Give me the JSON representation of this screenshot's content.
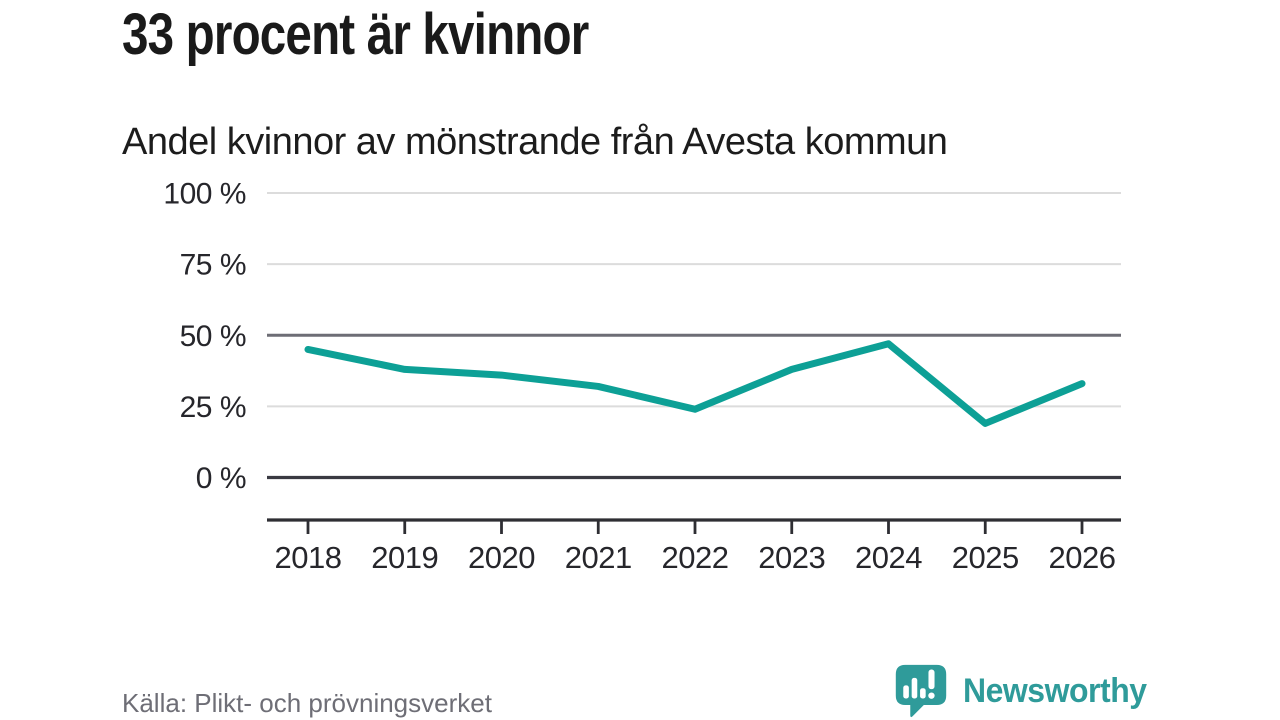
{
  "header": {
    "title": "33 procent är kvinnor",
    "subtitle": "Andel kvinnor av mönstrande från Avesta kommun"
  },
  "chart_data": {
    "type": "line",
    "title": "33 procent är kvinnor",
    "subtitle": "Andel kvinnor av mönstrande från Avesta kommun",
    "categories": [
      "2018",
      "2019",
      "2020",
      "2021",
      "2022",
      "2023",
      "2024",
      "2025",
      "2026"
    ],
    "series": [
      {
        "name": "Andel kvinnor av mönstrande (%)",
        "values": [
          45,
          38,
          36,
          32,
          24,
          38,
          47,
          19,
          33
        ]
      }
    ],
    "unit": "%",
    "ylim": [
      0,
      100
    ],
    "yticks": [
      0,
      25,
      50,
      75,
      100
    ],
    "ytick_labels": [
      "0 %",
      "25 %",
      "50 %",
      "75 %",
      "100 %"
    ],
    "emphasized_gridline": 50,
    "grid": "horizontal",
    "legend": false,
    "xlabel": "",
    "ylabel": ""
  },
  "footer": {
    "source": "Källa: Plikt- och prövningsverket",
    "brand": "Newsworthy",
    "logo_icon": "bar-chart-speech-bubble-icon"
  },
  "colors": {
    "accent": "#0da096",
    "grid_light": "#dcdcdc",
    "grid_mid": "#6d6d75",
    "axis_dark": "#2e2e33",
    "text_dark": "#1a1a1a",
    "text_muted": "#6e6e76",
    "brand_teal": "#2f9b9a",
    "background": "#ffffff"
  }
}
